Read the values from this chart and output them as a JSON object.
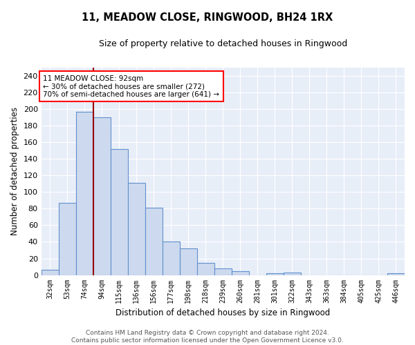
{
  "title": "11, MEADOW CLOSE, RINGWOOD, BH24 1RX",
  "subtitle": "Size of property relative to detached houses in Ringwood",
  "xlabel": "Distribution of detached houses by size in Ringwood",
  "ylabel": "Number of detached properties",
  "bar_labels": [
    "32sqm",
    "53sqm",
    "74sqm",
    "94sqm",
    "115sqm",
    "136sqm",
    "156sqm",
    "177sqm",
    "198sqm",
    "218sqm",
    "239sqm",
    "260sqm",
    "281sqm",
    "301sqm",
    "322sqm",
    "343sqm",
    "363sqm",
    "384sqm",
    "405sqm",
    "425sqm",
    "446sqm"
  ],
  "bar_values": [
    6,
    87,
    197,
    190,
    152,
    111,
    81,
    40,
    32,
    15,
    8,
    5,
    0,
    2,
    3,
    0,
    0,
    0,
    0,
    0,
    2
  ],
  "bar_color": "#ccd9ee",
  "bar_edge_color": "#6090cc",
  "vline_position": 2.5,
  "annotation_line1": "11 MEADOW CLOSE: 92sqm",
  "annotation_line2": "← 30% of detached houses are smaller (272)",
  "annotation_line3": "70% of semi-detached houses are larger (641) →",
  "annotation_box_color": "white",
  "annotation_box_edge_color": "red",
  "vline_color": "#990000",
  "ylim": [
    0,
    250
  ],
  "yticks": [
    0,
    20,
    40,
    60,
    80,
    100,
    120,
    140,
    160,
    180,
    200,
    220,
    240
  ],
  "background_color": "#e8eef8",
  "grid_color": "white",
  "footer_line1": "Contains HM Land Registry data © Crown copyright and database right 2024.",
  "footer_line2": "Contains public sector information licensed under the Open Government Licence v3.0."
}
